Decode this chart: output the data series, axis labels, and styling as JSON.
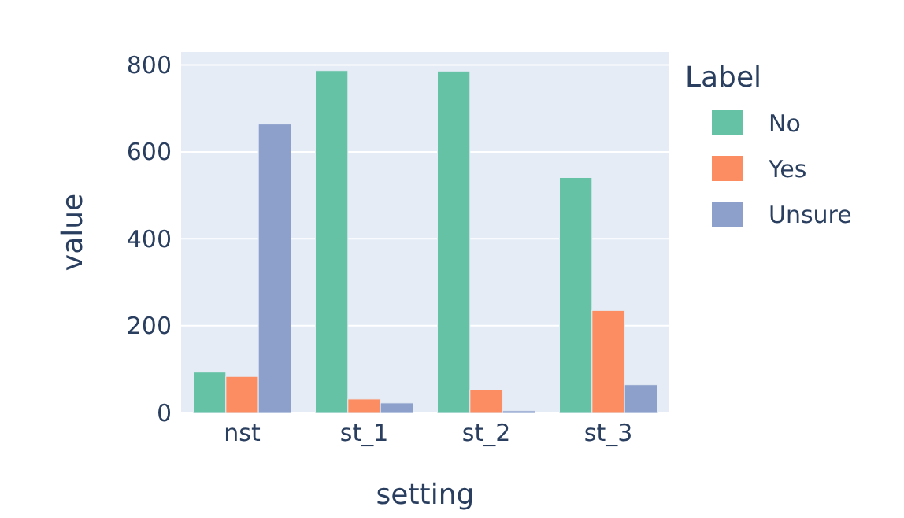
{
  "chart_data": {
    "type": "bar",
    "xlabel": "setting",
    "ylabel": "value",
    "legend_title": "Label",
    "categories": [
      "nst",
      "st_1",
      "st_2",
      "st_3"
    ],
    "series": [
      {
        "name": "No",
        "color": "#66c2a5",
        "values": [
          93,
          787,
          786,
          541
        ]
      },
      {
        "name": "Yes",
        "color": "#fc8d62",
        "values": [
          83,
          31,
          52,
          235
        ]
      },
      {
        "name": "Unsure",
        "color": "#8da0cb",
        "values": [
          664,
          22,
          4,
          64
        ]
      }
    ],
    "ylim": [
      0,
      830
    ],
    "yticks": [
      0,
      200,
      400,
      600,
      800
    ],
    "grid": "y",
    "legend": "right"
  }
}
